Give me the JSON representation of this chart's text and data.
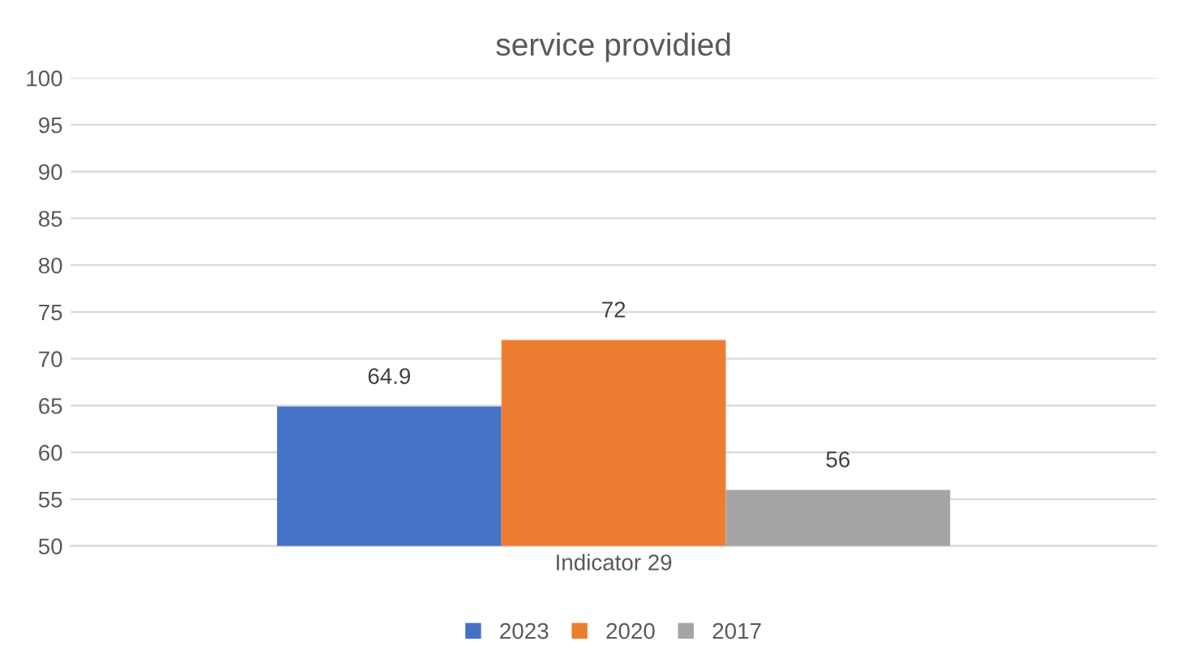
{
  "chart_data": {
    "type": "bar",
    "title": "service providied",
    "categories": [
      "Indicator 29"
    ],
    "series": [
      {
        "name": "2023",
        "color": "#4472c4",
        "values": [
          64.9
        ]
      },
      {
        "name": "2020",
        "color": "#ed7d31",
        "values": [
          72
        ]
      },
      {
        "name": "2017",
        "color": "#a5a5a5",
        "values": [
          56
        ]
      }
    ],
    "ylim": [
      50,
      100
    ],
    "yticks": [
      50,
      55,
      60,
      65,
      70,
      75,
      80,
      85,
      90,
      95,
      100
    ],
    "grid": "y",
    "legend": "bottom",
    "data_labels": true
  }
}
